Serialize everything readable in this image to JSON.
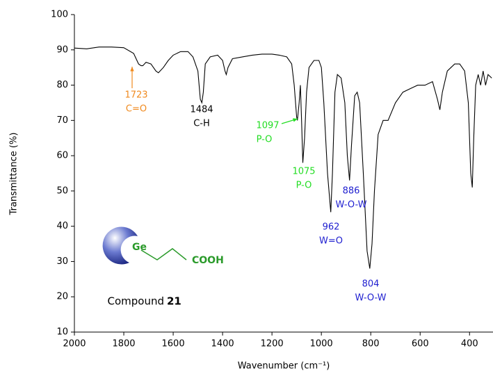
{
  "chart_data": {
    "type": "line",
    "xlabel": "Wavenumber (cm⁻¹)",
    "ylabel": "Transmittance (%)",
    "xlim": [
      2000,
      305
    ],
    "ylim": [
      10,
      100
    ],
    "xticks": [
      2000,
      1800,
      1600,
      1400,
      1200,
      1000,
      800,
      600,
      400
    ],
    "yticks": [
      10,
      20,
      30,
      40,
      50,
      60,
      70,
      80,
      90,
      100
    ],
    "series": [
      {
        "color": "#000000",
        "x": [
          2000,
          1950,
          1900,
          1850,
          1800,
          1760,
          1740,
          1730,
          1723,
          1710,
          1690,
          1670,
          1660,
          1640,
          1620,
          1600,
          1570,
          1540,
          1520,
          1500,
          1490,
          1484,
          1478,
          1470,
          1450,
          1420,
          1400,
          1390,
          1385,
          1378,
          1360,
          1320,
          1280,
          1240,
          1200,
          1170,
          1140,
          1120,
          1110,
          1100,
          1097,
          1090,
          1085,
          1080,
          1075,
          1068,
          1060,
          1050,
          1030,
          1010,
          1000,
          990,
          975,
          962,
          955,
          945,
          935,
          920,
          905,
          895,
          886,
          878,
          865,
          855,
          845,
          830,
          815,
          804,
          795,
          785,
          770,
          750,
          730,
          700,
          670,
          640,
          610,
          580,
          550,
          530,
          520,
          510,
          490,
          460,
          440,
          420,
          405,
          395,
          389,
          383,
          375,
          365,
          355,
          345,
          335,
          325,
          310
        ],
        "values": [
          90.5,
          90.3,
          90.8,
          90.8,
          90.6,
          89,
          86,
          85.5,
          85.5,
          86.5,
          86,
          84,
          83.5,
          85,
          87,
          88.5,
          89.5,
          89.5,
          88,
          84,
          76,
          75,
          78,
          86,
          88,
          88.5,
          87,
          84,
          83,
          85,
          87.5,
          88,
          88.5,
          88.8,
          88.8,
          88.5,
          88,
          86,
          80,
          71,
          70,
          75,
          80,
          70,
          58,
          65,
          78,
          85,
          87,
          87,
          85,
          75,
          55,
          44,
          55,
          78,
          83,
          82,
          75,
          60,
          53,
          63,
          77,
          78,
          75,
          55,
          33,
          28,
          35,
          50,
          66,
          70,
          70,
          75,
          78,
          79,
          80,
          80,
          81,
          76,
          73,
          78,
          84,
          86,
          86,
          84,
          75,
          55,
          51,
          65,
          80,
          83,
          80,
          84,
          80,
          83,
          82
        ]
      }
    ],
    "annotations": [
      {
        "text": "1723",
        "sub": "C=O",
        "color": "#f08a1e"
      },
      {
        "text": "1484",
        "sub": "C-H",
        "color": "#000000"
      },
      {
        "text": "1097",
        "sub": "P-O",
        "color": "#22dd22"
      },
      {
        "text": "1075",
        "sub": "P-O",
        "color": "#22dd22"
      },
      {
        "text": "962",
        "sub": "W=O",
        "color": "#2020d0"
      },
      {
        "text": "886",
        "sub": "W-O-W",
        "color": "#2020d0"
      },
      {
        "text": "804",
        "sub": "W-O-W",
        "color": "#2020d0"
      }
    ],
    "compound": {
      "atom": "Ge",
      "group": "COOH",
      "label": "Compound",
      "number": "21"
    }
  }
}
